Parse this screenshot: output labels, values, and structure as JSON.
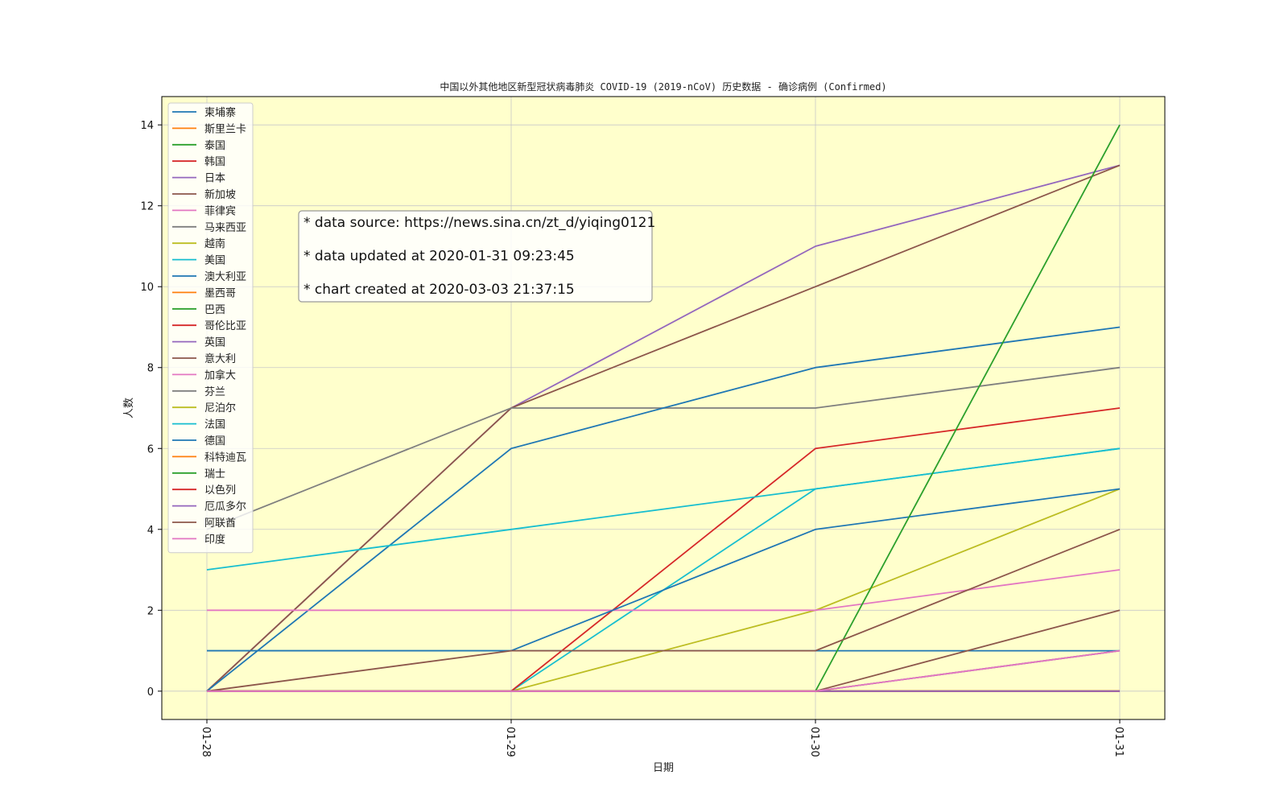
{
  "chart_data": {
    "type": "line",
    "title": "中国以外其他地区新型冠状病毒肺炎 COVID-19 (2019-nCoV) 历史数据 - 确诊病例 (Confirmed)",
    "xlabel": "日期",
    "ylabel": "人数",
    "categories": [
      "01-28",
      "01-29",
      "01-30",
      "01-31"
    ],
    "ylim": [
      -0.7,
      14.7
    ],
    "yticks": [
      0,
      2,
      4,
      6,
      8,
      10,
      12,
      14
    ],
    "grid": true,
    "legend_position": "top-left",
    "background_color": "#ffffcc",
    "series": [
      {
        "name": "柬埔寨",
        "color": "#1f77b4",
        "values": [
          1,
          1,
          1,
          1
        ]
      },
      {
        "name": "斯里兰卡",
        "color": "#ff7f0e",
        "values": [
          0,
          0,
          0,
          0
        ]
      },
      {
        "name": "泰国",
        "color": "#2ca02c",
        "values": [
          0,
          0,
          0,
          0
        ]
      },
      {
        "name": "韩国",
        "color": "#d62728",
        "values": [
          0,
          0,
          0,
          0
        ]
      },
      {
        "name": "日本",
        "color": "#9467bd",
        "values": [
          0,
          7,
          11,
          13
        ]
      },
      {
        "name": "新加坡",
        "color": "#8c564b",
        "values": [
          0,
          7,
          10,
          13
        ]
      },
      {
        "name": "菲律宾",
        "color": "#e377c2",
        "values": [
          0,
          0,
          0,
          1
        ]
      },
      {
        "name": "马来西亚",
        "color": "#7f7f7f",
        "values": [
          4,
          7,
          7,
          8
        ]
      },
      {
        "name": "越南",
        "color": "#bcbd22",
        "values": [
          0,
          0,
          2,
          5
        ]
      },
      {
        "name": "美国",
        "color": "#17becf",
        "values": [
          0,
          0,
          5,
          6
        ]
      },
      {
        "name": "澳大利亚",
        "color": "#1f77b4",
        "values": [
          0,
          6,
          8,
          9
        ]
      },
      {
        "name": "墨西哥",
        "color": "#ff7f0e",
        "values": [
          0,
          0,
          0,
          0
        ]
      },
      {
        "name": "巴西",
        "color": "#2ca02c",
        "values": [
          0,
          0,
          0,
          0
        ]
      },
      {
        "name": "哥伦比亚",
        "color": "#d62728",
        "values": [
          0,
          0,
          6,
          7
        ]
      },
      {
        "name": "英国",
        "color": "#9467bd",
        "values": [
          0,
          0,
          0,
          0
        ]
      },
      {
        "name": "意大利",
        "color": "#8c564b",
        "values": [
          0,
          0,
          0,
          2
        ]
      },
      {
        "name": "加拿大",
        "color": "#e377c2",
        "values": [
          2,
          2,
          2,
          3
        ]
      },
      {
        "name": "芬兰",
        "color": "#7f7f7f",
        "values": [
          0,
          0,
          0,
          1
        ]
      },
      {
        "name": "尼泊尔",
        "color": "#bcbd22",
        "values": [
          0,
          0,
          0,
          0
        ]
      },
      {
        "name": "法国",
        "color": "#17becf",
        "values": [
          3,
          4,
          5,
          6
        ]
      },
      {
        "name": "德国",
        "color": "#1f77b4",
        "values": [
          1,
          1,
          4,
          5
        ]
      },
      {
        "name": "科特迪瓦",
        "color": "#ff7f0e",
        "values": [
          0,
          0,
          0,
          0
        ]
      },
      {
        "name": "瑞士",
        "color": "#2ca02c",
        "values": [
          0,
          0,
          0,
          14
        ]
      },
      {
        "name": "以色列",
        "color": "#d62728",
        "values": [
          0,
          0,
          0,
          0
        ]
      },
      {
        "name": "厄瓜多尔",
        "color": "#9467bd",
        "values": [
          0,
          0,
          0,
          0
        ]
      },
      {
        "name": "阿联酋",
        "color": "#8c564b",
        "values": [
          0,
          1,
          1,
          4
        ]
      },
      {
        "name": "印度",
        "color": "#e377c2",
        "values": [
          0,
          0,
          0,
          1
        ]
      }
    ],
    "annotations": [
      "* data source: https://news.sina.cn/zt_d/yiqing0121",
      "* data updated at 2020-01-31 09:23:45",
      "* chart created at 2020-03-03 21:37:15"
    ]
  }
}
